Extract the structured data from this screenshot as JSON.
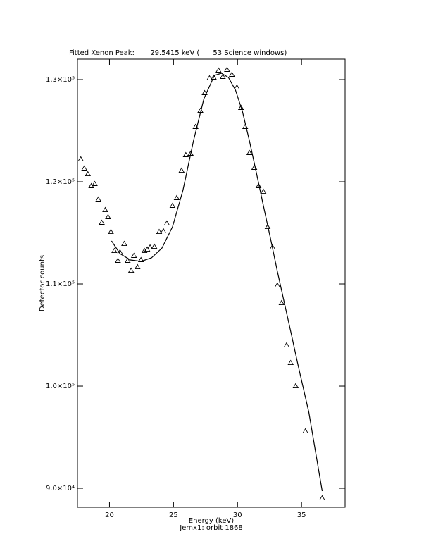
{
  "chart_data": {
    "type": "scatter",
    "title": "Fitted Xenon Peak:       29.5415 keV (      53 Science windows)",
    "x_label": "Energy (keV)",
    "subtitle": "Jemx1: orbit 1868",
    "y_label": "Detector counts",
    "xlim": [
      17.5,
      38.4
    ],
    "ylim": [
      88140,
      132000
    ],
    "xticks": [
      20,
      25,
      30,
      35
    ],
    "yticks": [
      {
        "value": 90000,
        "label": "9.0×10⁴"
      },
      {
        "value": 100000,
        "label": "1.0×10⁵"
      },
      {
        "value": 110000,
        "label": "1.1×10⁵"
      },
      {
        "value": 120000,
        "label": "1.2×10⁵"
      },
      {
        "value": 130000,
        "label": "1.3×10⁵"
      }
    ],
    "series": [
      {
        "marker": "triangle",
        "color": "#000000",
        "x": [
          17.76,
          18.03,
          18.31,
          18.58,
          18.85,
          19.13,
          19.4,
          19.67,
          19.89,
          20.11,
          20.38,
          20.66,
          20.82,
          21.15,
          21.42,
          21.69,
          21.91,
          22.19,
          22.46,
          22.73,
          22.95,
          23.17,
          23.5,
          23.88,
          24.21,
          24.48,
          24.92,
          25.25,
          25.63,
          25.96,
          26.34,
          26.72,
          27.1,
          27.43,
          27.81,
          28.14,
          28.52,
          28.85,
          29.18,
          29.56,
          29.95,
          30.27,
          30.6,
          30.93,
          31.31,
          31.64,
          32.02,
          32.35,
          32.73,
          33.11,
          33.44,
          33.83,
          34.15,
          34.54,
          35.3,
          36.61
        ],
        "values": [
          122207,
          121310,
          120758,
          119586,
          119793,
          118276,
          116000,
          117241,
          116552,
          115103,
          113241,
          112276,
          113103,
          113931,
          112276,
          111310,
          112759,
          111655,
          112345,
          113241,
          113379,
          113586,
          113655,
          115103,
          115172,
          115931,
          117655,
          118414,
          121103,
          122621,
          122759,
          125379,
          126966,
          128690,
          130138,
          130207,
          130897,
          130276,
          130966,
          130483,
          129241,
          127241,
          125379,
          122828,
          121379,
          119586,
          119034,
          115586,
          113586,
          109862,
          108138,
          104000,
          102276,
          100000,
          95586,
          89034
        ]
      },
      {
        "marker": "line",
        "color": "#000000",
        "x": [
          20.16,
          20.82,
          21.64,
          22.46,
          23.28,
          24.1,
          24.92,
          25.74,
          26.56,
          27.38,
          28.2,
          28.74,
          29.29,
          29.84,
          30.38,
          30.93,
          31.48,
          32.02,
          32.57,
          33.11,
          33.66,
          34.21,
          34.75,
          35.57,
          36.61
        ],
        "values": [
          114207,
          112966,
          112345,
          112207,
          112552,
          113517,
          115586,
          119172,
          124000,
          128138,
          130414,
          130621,
          130207,
          128966,
          126897,
          124000,
          120828,
          117655,
          114483,
          111241,
          108138,
          105034,
          101931,
          97448,
          89724
        ]
      }
    ]
  }
}
